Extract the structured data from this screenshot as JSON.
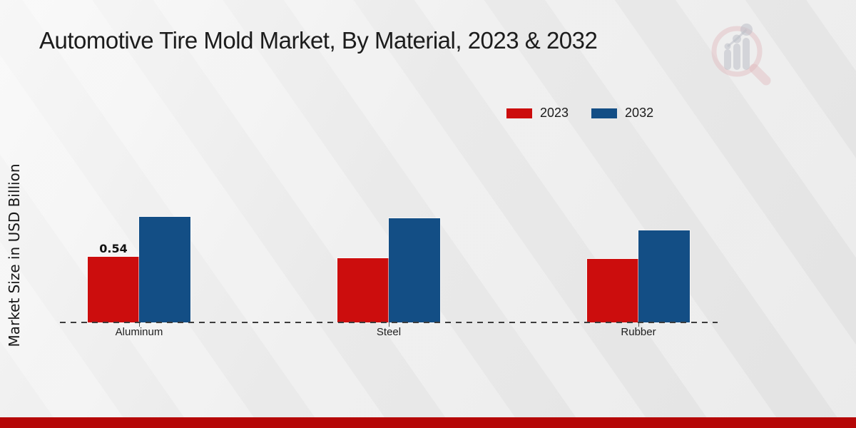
{
  "page": {
    "title": "Automotive Tire Mold Market, By Material, 2023 & 2032",
    "background_color": "#e9e9e9",
    "footer_band_color": "#b50707"
  },
  "watermark": {
    "name": "market-research-magnifier-logo",
    "ring_color": "#dfb3b8",
    "bars_color": "#b7bac3"
  },
  "chart_data": {
    "type": "bar",
    "title": "Automotive Tire Mold Market, By Material, 2023 & 2032",
    "xlabel": "",
    "ylabel": "Market Size in USD Billion",
    "unit": "USD Billion",
    "categories": [
      "Aluminum",
      "Steel",
      "Rubber"
    ],
    "series": [
      {
        "name": "2023",
        "color": "#cc0d0d",
        "values": [
          0.54,
          0.53,
          0.52
        ],
        "data_labels": [
          "0.54",
          null,
          null
        ]
      },
      {
        "name": "2032",
        "color": "#134e85",
        "values": [
          0.87,
          0.86,
          0.76
        ],
        "data_labels": [
          null,
          null,
          null
        ]
      }
    ],
    "ylim": [
      0,
      1.0
    ],
    "grid": false,
    "y_axis_ticks_visible": false,
    "baseline_style": "dashed",
    "legend_position": "top-right"
  }
}
